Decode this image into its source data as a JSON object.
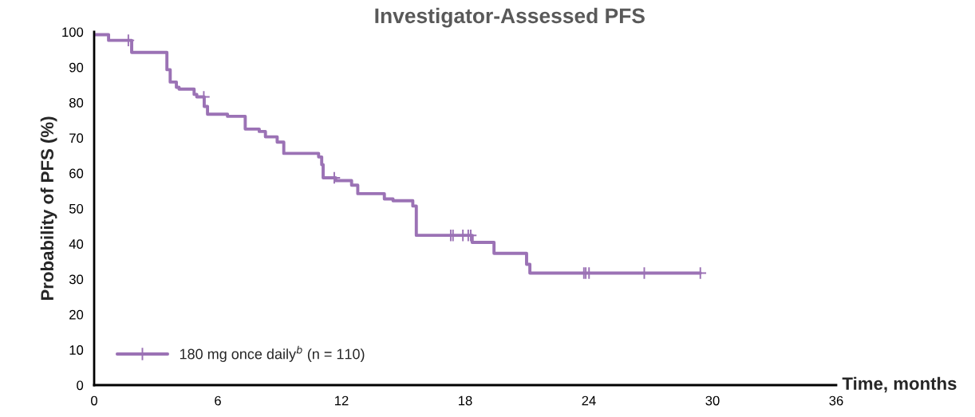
{
  "chart_data": {
    "type": "step",
    "title": "Investigator-Assessed PFS",
    "xlabel": "Time, months",
    "ylabel": "Probability of PFS (%)",
    "xlim": [
      0,
      36
    ],
    "xticks": [
      0,
      6,
      12,
      18,
      24,
      30,
      36
    ],
    "ylim": [
      0,
      100
    ],
    "yticks": [
      0,
      10,
      20,
      30,
      40,
      50,
      60,
      70,
      80,
      90,
      100
    ],
    "grid": false,
    "legend": "bottom left",
    "series": [
      {
        "name": "180 mg once daily$^{b}$ (n = 110)",
        "color": "#9b72b5",
        "marker": "none",
        "x": [
          0,
          0.7,
          1.82,
          3.53,
          3.69,
          3.99,
          4.12,
          4.85,
          4.98,
          5.34,
          5.5,
          6.47,
          7.33,
          8.01,
          8.31,
          8.88,
          9.2,
          10.89,
          11.04,
          11.11,
          11.72,
          12.49,
          12.79,
          14.08,
          14.5,
          15.46,
          15.63,
          18.34,
          19.4,
          20.98,
          21.14,
          29.41
        ],
        "values": [
          99.2,
          97.6,
          94.2,
          89.3,
          85.8,
          84.3,
          83.8,
          82.3,
          81.6,
          78.9,
          76.7,
          76.1,
          72.5,
          71.8,
          70.3,
          68.8,
          65.6,
          64.6,
          62.4,
          58.7,
          57.9,
          56.6,
          54.2,
          52.7,
          52.2,
          50.7,
          42.4,
          40.4,
          37.3,
          34.2,
          31.7,
          31.7
        ]
      },
      {
        "color": "#9b72b5",
        "type": "scatter",
        "marker": "cross",
        "x": [
          1.66,
          5.32,
          11.65,
          17.3,
          17.41,
          17.89,
          18.15,
          18.27,
          23.76,
          23.85,
          24.01,
          26.69,
          29.41
        ],
        "values": [
          97.6,
          81.6,
          58.7,
          42.4,
          42.4,
          42.4,
          42.4,
          42.4,
          31.7,
          31.7,
          31.7,
          31.7,
          31.7
        ]
      }
    ]
  }
}
